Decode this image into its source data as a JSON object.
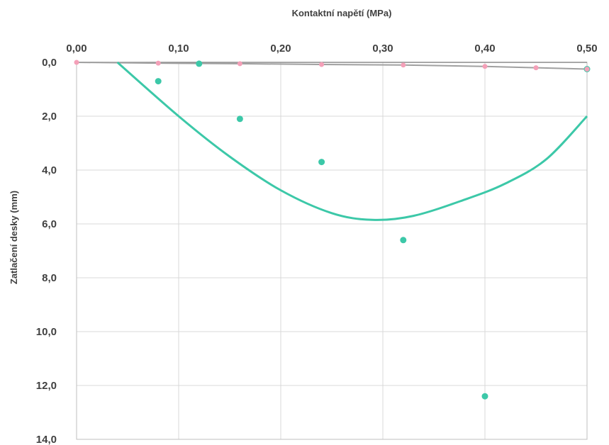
{
  "chart_data": {
    "type": "scatter",
    "title": "",
    "xlabel": "Kontaktní napětí (MPa)",
    "ylabel": "Zatlačení desky (mm)",
    "xlim": [
      0,
      0.5
    ],
    "ylim": [
      0,
      14
    ],
    "x_axis_position": "top",
    "y_axis_inverted": true,
    "grid": true,
    "x_ticks": [
      "0,00",
      "0,10",
      "0,20",
      "0,30",
      "0,40",
      "0,50"
    ],
    "y_ticks": [
      "0,0",
      "2,0",
      "4,0",
      "6,0",
      "8,0",
      "10,0",
      "12,0",
      "14,0"
    ],
    "series": [
      {
        "color": "#3cc8a8",
        "marker": "circle",
        "points": [
          {
            "x": 0.08,
            "y": 0.7
          },
          {
            "x": 0.12,
            "y": 0.05
          },
          {
            "x": 0.16,
            "y": 2.1
          },
          {
            "x": 0.24,
            "y": 3.7
          },
          {
            "x": 0.32,
            "y": 6.6
          },
          {
            "x": 0.4,
            "y": 12.4
          },
          {
            "x": 0.5,
            "y": 0.25
          }
        ]
      },
      {
        "color": "#f4a0b8",
        "marker": "circle",
        "points": [
          {
            "x": 0.0,
            "y": 0.0
          },
          {
            "x": 0.08,
            "y": 0.03
          },
          {
            "x": 0.16,
            "y": 0.05
          },
          {
            "x": 0.24,
            "y": 0.08
          },
          {
            "x": 0.32,
            "y": 0.1
          },
          {
            "x": 0.4,
            "y": 0.15
          },
          {
            "x": 0.45,
            "y": 0.2
          },
          {
            "x": 0.5,
            "y": 0.25
          }
        ],
        "line": true
      }
    ],
    "trendline": {
      "type": "polynomial",
      "color": "#3cc8a8",
      "points": [
        {
          "x": 0.04,
          "y": 0.0
        },
        {
          "x": 0.1,
          "y": 2.0
        },
        {
          "x": 0.15,
          "y": 3.5
        },
        {
          "x": 0.2,
          "y": 4.75
        },
        {
          "x": 0.25,
          "y": 5.6
        },
        {
          "x": 0.29,
          "y": 5.85
        },
        {
          "x": 0.33,
          "y": 5.7
        },
        {
          "x": 0.38,
          "y": 5.1
        },
        {
          "x": 0.42,
          "y": 4.5
        },
        {
          "x": 0.46,
          "y": 3.6
        },
        {
          "x": 0.5,
          "y": 2.0
        }
      ]
    }
  }
}
